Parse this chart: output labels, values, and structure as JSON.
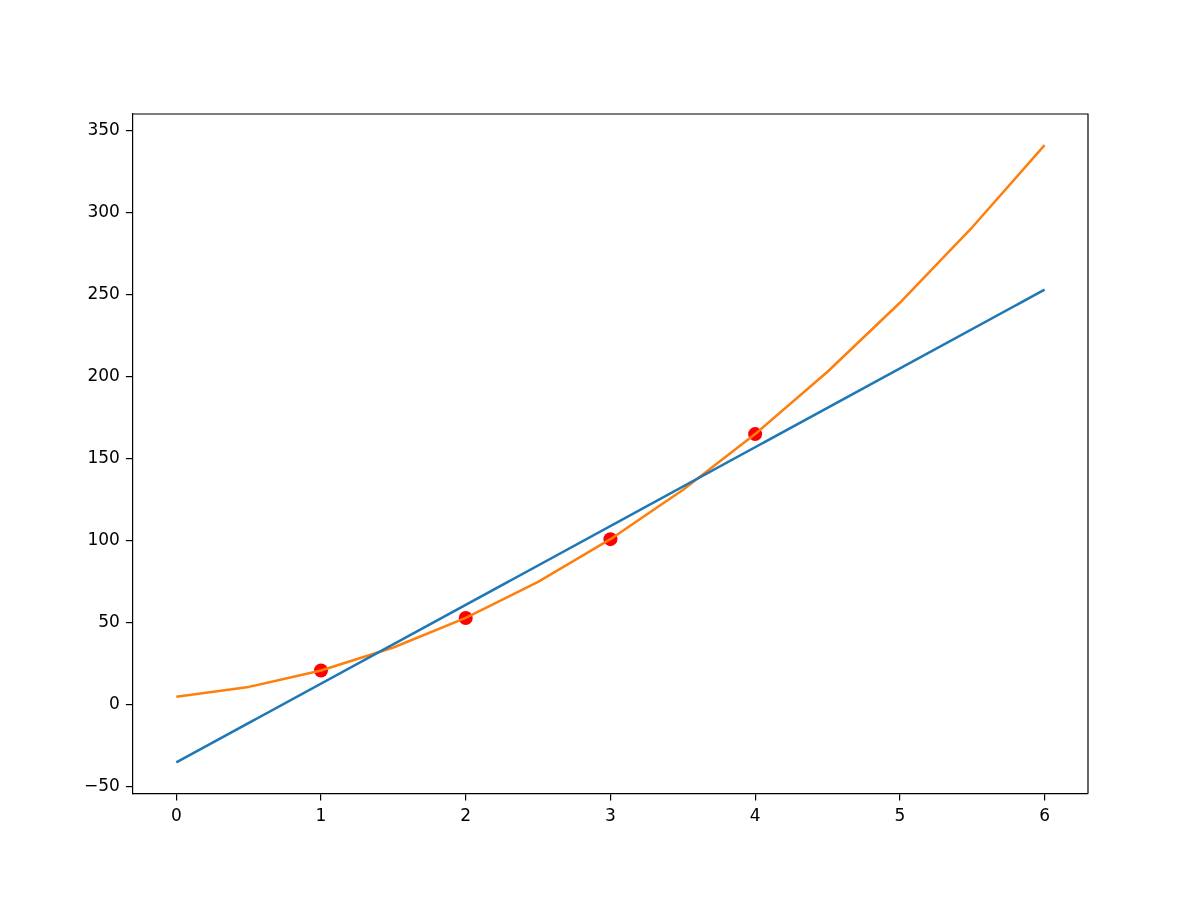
{
  "chart_data": {
    "type": "scatter",
    "xlim": [
      -0.3,
      6.3
    ],
    "ylim": [
      -54,
      360
    ],
    "xticks": [
      0,
      1,
      2,
      3,
      4,
      5,
      6
    ],
    "yticks": [
      {
        "value": -50,
        "label": "−50"
      },
      0,
      50,
      100,
      150,
      200,
      250,
      300,
      350
    ],
    "grid": false,
    "legend": false,
    "series": [
      {
        "type": "line",
        "color": "#1f77b4",
        "x": [
          0,
          6
        ],
        "values": [
          -35,
          253
        ],
        "marker": "none",
        "line_style": "solid"
      },
      {
        "type": "line",
        "color": "#ff7f0e",
        "x": [
          0,
          0.5,
          1,
          1.5,
          2,
          2.5,
          3,
          3.5,
          4,
          4.5,
          5,
          5.5,
          6
        ],
        "values": [
          5,
          11,
          21,
          35,
          53,
          75,
          101,
          131,
          165,
          203,
          245,
          291,
          341
        ],
        "marker": "none",
        "line_style": "solid"
      },
      {
        "color": "#ff0000",
        "x": [
          1,
          2,
          3,
          4
        ],
        "values": [
          21,
          53,
          101,
          165
        ],
        "marker": "circle"
      }
    ]
  }
}
